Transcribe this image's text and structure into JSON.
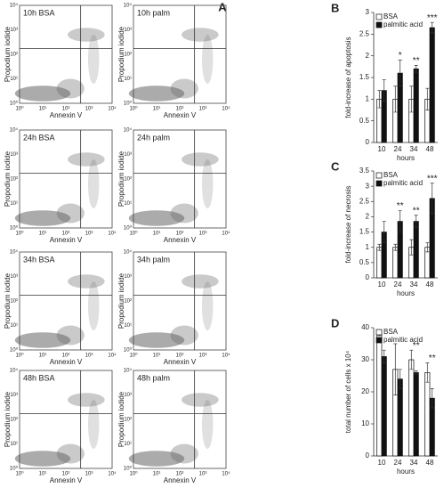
{
  "flow_cytometry": {
    "panel_label": "A",
    "x_label": "Annexin V",
    "y_label": "Propodium iodide",
    "ticks": [
      "10⁰",
      "10¹",
      "10²",
      "10³",
      "10⁴"
    ],
    "panels": [
      "10h BSA",
      "10h palm",
      "24h BSA",
      "24h palm",
      "34h BSA",
      "34h palm",
      "48h BSA",
      "48h palm"
    ]
  },
  "chart_data": [
    {
      "type": "bar",
      "panel_label": "B",
      "y_label": "fold-increase of apoptosis",
      "x_label": "hours",
      "categories": [
        "10",
        "24",
        "34",
        "48"
      ],
      "ylim": [
        0,
        3
      ],
      "yticks": [
        0,
        0.5,
        1,
        1.5,
        2,
        2.5,
        3
      ],
      "series": [
        {
          "name": "BSA",
          "color": "#ffffff",
          "values": [
            1,
            1,
            1,
            1
          ],
          "errors": [
            0.2,
            0.3,
            0.3,
            0.25
          ]
        },
        {
          "name": "palmitic acid",
          "color": "#111111",
          "values": [
            1.2,
            1.6,
            1.7,
            2.65
          ],
          "errors": [
            0.25,
            0.3,
            0.08,
            0.12
          ]
        }
      ],
      "significance": [
        null,
        "*",
        "**",
        "***"
      ]
    },
    {
      "type": "bar",
      "panel_label": "C",
      "y_label": "fold-increase of necrosis",
      "x_label": "hours",
      "categories": [
        "10",
        "24",
        "34",
        "48"
      ],
      "ylim": [
        0,
        3.5
      ],
      "yticks": [
        0,
        0.5,
        1,
        1.5,
        2,
        2.5,
        3,
        3.5
      ],
      "series": [
        {
          "name": "BSA",
          "color": "#ffffff",
          "values": [
            1,
            1,
            1,
            1
          ],
          "errors": [
            0.1,
            0.1,
            0.25,
            0.15
          ]
        },
        {
          "name": "palmitic acid",
          "color": "#111111",
          "values": [
            1.5,
            1.85,
            1.85,
            2.6
          ],
          "errors": [
            0.35,
            0.35,
            0.2,
            0.5
          ]
        }
      ],
      "significance": [
        null,
        "**",
        "**",
        "***"
      ]
    },
    {
      "type": "bar",
      "panel_label": "D",
      "y_label": "total number of cells x 10⁴",
      "x_label": "hours",
      "categories": [
        "10",
        "24",
        "34",
        "48"
      ],
      "ylim": [
        0,
        40
      ],
      "yticks": [
        0,
        10,
        20,
        30,
        40
      ],
      "series": [
        {
          "name": "BSA",
          "color": "#ffffff",
          "values": [
            38,
            27,
            30,
            26
          ],
          "errors": [
            0.5,
            8,
            3,
            3
          ]
        },
        {
          "name": "palmitic acid",
          "color": "#111111",
          "values": [
            31,
            24,
            26,
            18
          ],
          "errors": [
            2,
            3,
            0.5,
            3
          ]
        }
      ],
      "significance": [
        null,
        null,
        "**",
        "**"
      ]
    }
  ]
}
